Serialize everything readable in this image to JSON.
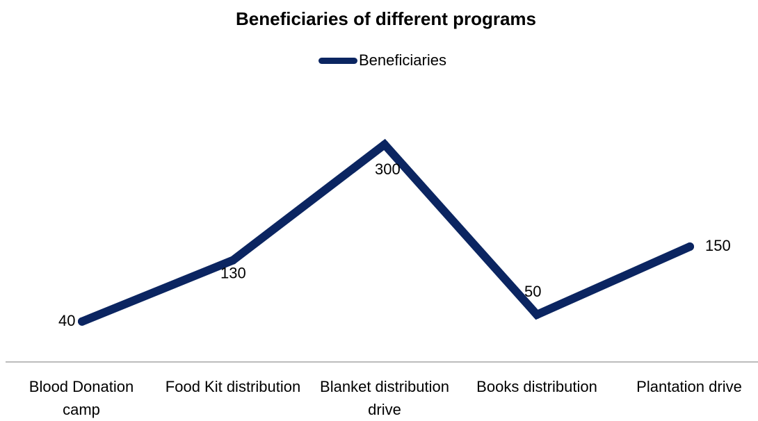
{
  "chart_data": {
    "type": "line",
    "title": "Beneficiaries of different programs",
    "xlabel": "",
    "ylabel": "",
    "categories": [
      "Blood Donation camp",
      "Food Kit distribution",
      "Blanket distribution drive",
      "Books distribution",
      "Plantation drive"
    ],
    "series": [
      {
        "name": "Beneficiaries",
        "values": [
          40,
          130,
          300,
          50,
          150
        ],
        "color": "#0b2561"
      }
    ],
    "data_labels": [
      "40",
      "130",
      "300",
      "50",
      "150"
    ],
    "legend": "top",
    "grid": false,
    "y_axis_visible": false
  }
}
